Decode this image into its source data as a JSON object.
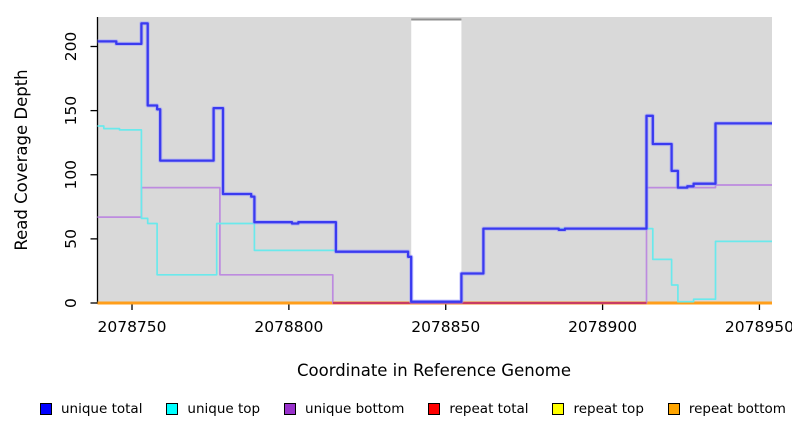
{
  "chart_data": {
    "type": "line",
    "interpolation": "step-after",
    "title": "",
    "xlabel": "Coordinate in Reference Genome",
    "ylabel": "Read Coverage Depth",
    "xlim": [
      2078739,
      2078954
    ],
    "ylim": [
      0,
      223
    ],
    "x_ticks": [
      2078750,
      2078800,
      2078850,
      2078900,
      2078950
    ],
    "y_ticks": [
      0,
      50,
      100,
      150,
      200
    ],
    "panel_background": "#d9d9d9",
    "grid": "off",
    "legend_position": "bottom",
    "gap_region": {
      "start": 2078839,
      "end": 2078855,
      "fill": "#ffffff",
      "top_border_color": "#8f8f8f"
    },
    "zero_line_red_segment": {
      "start": 2078814,
      "end": 2078914,
      "color": "#c93b63"
    },
    "series": [
      {
        "name": "repeat top",
        "layer": "under",
        "line_color": "#f2e500",
        "width": 2,
        "points": [
          [
            2078739,
            0
          ],
          [
            2078954,
            0
          ]
        ]
      },
      {
        "name": "repeat total",
        "layer": "under",
        "line_color": "#ff2020",
        "width": 2,
        "points": [
          [
            2078739,
            0
          ],
          [
            2078954,
            0
          ]
        ]
      },
      {
        "name": "repeat bottom",
        "layer": "under",
        "line_color": "#ff9e1a",
        "width": 3,
        "points": [
          [
            2078739,
            0
          ],
          [
            2078954,
            0
          ]
        ]
      },
      {
        "name": "unique bottom",
        "layer": "under",
        "line_color": "#bd8bdf",
        "width": 1.7,
        "points": [
          [
            2078739,
            67
          ],
          [
            2078753,
            90
          ],
          [
            2078778,
            22
          ],
          [
            2078814,
            0
          ],
          [
            2078914,
            90
          ],
          [
            2078936,
            92
          ],
          [
            2078954,
            92
          ]
        ]
      },
      {
        "name": "unique top",
        "layer": "over",
        "line_color": "#6ae9ec",
        "width": 1.7,
        "points": [
          [
            2078739,
            138
          ],
          [
            2078741,
            136
          ],
          [
            2078746,
            135
          ],
          [
            2078753,
            66
          ],
          [
            2078755,
            62
          ],
          [
            2078758,
            22
          ],
          [
            2078777,
            62
          ],
          [
            2078789,
            41
          ],
          [
            2078815,
            40
          ],
          [
            2078838,
            36
          ],
          [
            2078839,
            1
          ],
          [
            2078855,
            23
          ],
          [
            2078862,
            58
          ],
          [
            2078914,
            58
          ],
          [
            2078916,
            34
          ],
          [
            2078922,
            14
          ],
          [
            2078924,
            1
          ],
          [
            2078929,
            3
          ],
          [
            2078936,
            48
          ],
          [
            2078954,
            48
          ]
        ]
      },
      {
        "name": "unique total",
        "layer": "over",
        "line_color": "#3a3af0",
        "halo_color": "#9b9bff",
        "width": 2.3,
        "points": [
          [
            2078739,
            204
          ],
          [
            2078745,
            202
          ],
          [
            2078753,
            218
          ],
          [
            2078755,
            154
          ],
          [
            2078758,
            151
          ],
          [
            2078759,
            111
          ],
          [
            2078776,
            152
          ],
          [
            2078779,
            85
          ],
          [
            2078788,
            83
          ],
          [
            2078789,
            63
          ],
          [
            2078801,
            62
          ],
          [
            2078803,
            63
          ],
          [
            2078815,
            40
          ],
          [
            2078838,
            36
          ],
          [
            2078839,
            1
          ],
          [
            2078855,
            23
          ],
          [
            2078862,
            58
          ],
          [
            2078886,
            57
          ],
          [
            2078888,
            58
          ],
          [
            2078914,
            146
          ],
          [
            2078916,
            124
          ],
          [
            2078922,
            103
          ],
          [
            2078924,
            90
          ],
          [
            2078927,
            91
          ],
          [
            2078929,
            93
          ],
          [
            2078936,
            140
          ],
          [
            2078954,
            140
          ]
        ]
      }
    ]
  },
  "legend": {
    "items": [
      {
        "label": "unique total",
        "color": "#0000ff"
      },
      {
        "label": "unique top",
        "color": "#00ffff"
      },
      {
        "label": "unique bottom",
        "color": "#9932cc"
      },
      {
        "label": "repeat total",
        "color": "#ff0000"
      },
      {
        "label": "repeat top",
        "color": "#ffff00"
      },
      {
        "label": "repeat bottom",
        "color": "#ffa500"
      }
    ]
  }
}
